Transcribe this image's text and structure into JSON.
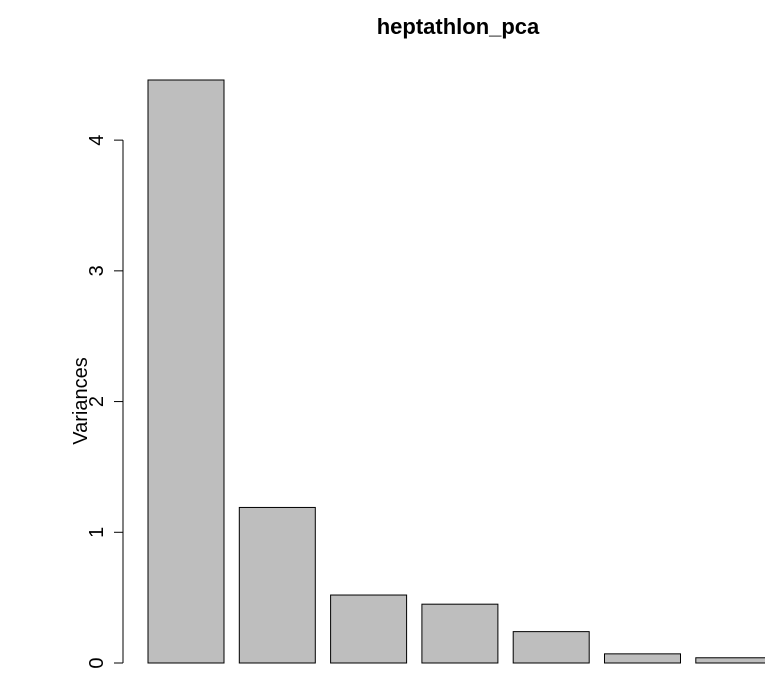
{
  "chart_data": {
    "type": "bar",
    "title": "heptathlon_pca",
    "xlabel": "",
    "ylabel": "Variances",
    "categories": [
      "",
      "",
      "",
      "",
      "",
      "",
      ""
    ],
    "values": [
      4.46,
      1.19,
      0.52,
      0.45,
      0.24,
      0.07,
      0.04
    ],
    "ylim": [
      0,
      4.46
    ],
    "yticks": [
      0,
      1,
      2,
      3,
      4
    ],
    "ytick_labels": [
      "0",
      "1",
      "2",
      "3",
      "4"
    ],
    "grid": false,
    "bar_color": "#bebebe",
    "edge_color": "#000000"
  }
}
